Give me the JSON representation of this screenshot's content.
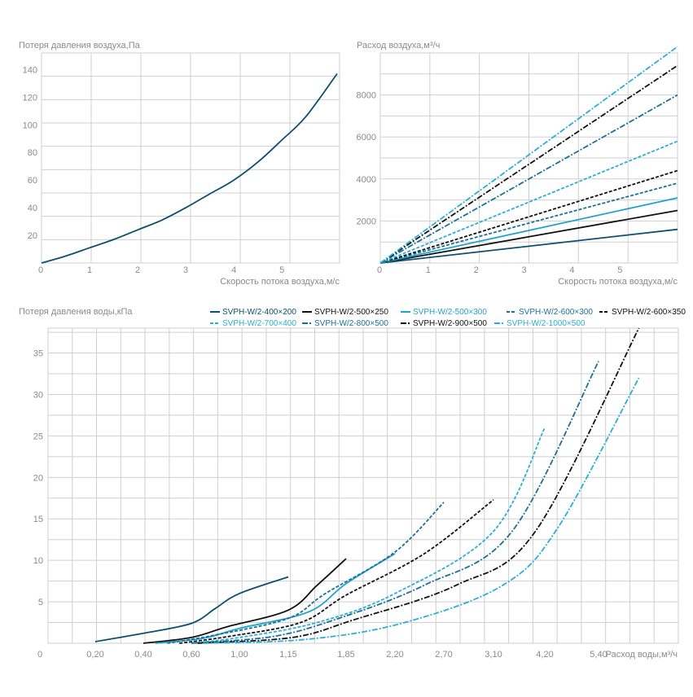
{
  "chart_data": [
    {
      "type": "line",
      "ylabel": "Потеря давления воздуха,Па",
      "xlabel": "Скорость потока воздуха,м/с",
      "origin_label": "0",
      "xlim": [
        0,
        6.2
      ],
      "ylim": [
        0,
        152
      ],
      "x_ticks": [
        1,
        2,
        3,
        4,
        5
      ],
      "x_tick_labels": [
        "1",
        "2",
        "3",
        "4",
        "5"
      ],
      "y_ticks": [
        20,
        40,
        60,
        80,
        100,
        120,
        140
      ],
      "y_tick_labels": [
        "20",
        "40",
        "60",
        "80",
        "100",
        "120",
        "140"
      ],
      "grid": true,
      "series": [
        {
          "color": "#0c4f6e",
          "dash": "solid",
          "x": [
            0,
            0.5,
            1,
            1.5,
            2,
            2.5,
            3,
            3.5,
            4,
            4.5,
            5,
            5.5,
            6.15
          ],
          "y": [
            0,
            5,
            11,
            17,
            24,
            31,
            40,
            50,
            60,
            73,
            89,
            106,
            137
          ]
        }
      ]
    },
    {
      "type": "line",
      "ylabel": "Расход воздуха,м³/ч",
      "xlabel": "Скорость потока воздуха,м/с",
      "origin_label": "0",
      "xlim": [
        0,
        6.2
      ],
      "ylim": [
        0,
        10000
      ],
      "x_ticks": [
        1,
        2,
        3,
        4,
        5
      ],
      "x_tick_labels": [
        "1",
        "2",
        "3",
        "4",
        "5"
      ],
      "y_ticks": [
        2000,
        4000,
        6000,
        8000
      ],
      "y_tick_labels": [
        "2000",
        "4000",
        "6000",
        "8000"
      ],
      "grid": true,
      "series": [
        {
          "color": "#0c4f6e",
          "dash": "solid",
          "x": [
            0,
            6.2
          ],
          "y": [
            0,
            1600
          ]
        },
        {
          "color": "#111111",
          "dash": "solid",
          "x": [
            0,
            6.2
          ],
          "y": [
            0,
            2500
          ]
        },
        {
          "color": "#1fa3cc",
          "dash": "solid",
          "x": [
            0,
            6.2
          ],
          "y": [
            0,
            3100
          ]
        },
        {
          "color": "#1a6f96",
          "dash": "dashed",
          "x": [
            0,
            6.2
          ],
          "y": [
            0,
            3800
          ]
        },
        {
          "color": "#111111",
          "dash": "dashed",
          "x": [
            0,
            6.2
          ],
          "y": [
            0,
            4400
          ]
        },
        {
          "color": "#2aaed8",
          "dash": "dashed",
          "x": [
            0,
            6.2
          ],
          "y": [
            0,
            5800
          ]
        },
        {
          "color": "#1a6f96",
          "dash": "dashdot",
          "x": [
            0,
            6.2
          ],
          "y": [
            0,
            8000
          ]
        },
        {
          "color": "#111111",
          "dash": "dashdot",
          "x": [
            0,
            6.2
          ],
          "y": [
            0,
            9400
          ]
        },
        {
          "color": "#2aaed8",
          "dash": "dashdot",
          "x": [
            0,
            6.2
          ],
          "y": [
            0,
            10300
          ]
        }
      ]
    },
    {
      "type": "line",
      "ylabel": "Потеря давления воды,кПа",
      "xlabel": "Расход воды,м³/ч",
      "origin_label": "0",
      "x_tick_labels": [
        "0,20",
        "0,40",
        "0,60",
        "1,00",
        "1,15",
        "1,85",
        "2,20",
        "2,70",
        "3,10",
        "4,20",
        "5,40"
      ],
      "y_ticks": [
        5,
        10,
        15,
        20,
        25,
        30,
        35
      ],
      "y_tick_labels": [
        "5",
        "10",
        "15",
        "20",
        "25",
        "30",
        "35"
      ],
      "ylim": [
        0,
        38
      ],
      "grid": true,
      "legend_position": "top-right",
      "series": [
        {
          "name": "SVPH-W/2-400×200",
          "color": "#0c4f6e",
          "dash": "solid",
          "x": [
            0.2,
            0.4,
            0.6,
            0.8,
            1.0,
            1.15
          ],
          "y": [
            0.2,
            1.2,
            2.4,
            4.2,
            6.0,
            8.0
          ]
        },
        {
          "name": "SVPH-W/2-500×250",
          "color": "#111111",
          "dash": "solid",
          "x": [
            0.4,
            0.6,
            0.9,
            1.15,
            1.5,
            1.85
          ],
          "y": [
            0.0,
            0.7,
            2.0,
            4.0,
            7.0,
            10.2
          ]
        },
        {
          "name": "SVPH-W/2-500×300",
          "color": "#1fa3cc",
          "dash": "solid",
          "x": [
            0.45,
            0.7,
            1.0,
            1.4,
            1.85,
            2.2
          ],
          "y": [
            0.0,
            0.6,
            1.8,
            3.8,
            7.2,
            10.8
          ]
        },
        {
          "name": "SVPH-W/2-600×300",
          "color": "#1a6f96",
          "dash": "dashed",
          "x": [
            0.5,
            0.8,
            1.15,
            1.6,
            2.2,
            2.7
          ],
          "y": [
            0.0,
            1.0,
            3.0,
            6.0,
            11.0,
            17.0
          ]
        },
        {
          "name": "SVPH-W/2-600×350",
          "color": "#111111",
          "dash": "dashed",
          "x": [
            0.55,
            0.9,
            1.3,
            1.85,
            2.5,
            3.1
          ],
          "y": [
            0.0,
            0.8,
            2.5,
            5.8,
            10.8,
            17.3
          ]
        },
        {
          "name": "SVPH-W/2-700×400",
          "color": "#2aaed8",
          "dash": "dashed",
          "x": [
            0.6,
            1.0,
            1.5,
            2.2,
            3.1,
            4.2
          ],
          "y": [
            0.0,
            0.7,
            2.5,
            6.0,
            13.5,
            26.0
          ]
        },
        {
          "name": "SVPH-W/2-800×500",
          "color": "#1a6f96",
          "dash": "dashdot",
          "x": [
            0.6,
            1.1,
            1.7,
            2.5,
            3.5,
            5.4
          ],
          "y": [
            0.0,
            0.8,
            2.8,
            7.0,
            13.5,
            34.0
          ]
        },
        {
          "name": "SVPH-W/2-900×500",
          "color": "#111111",
          "dash": "dashdot",
          "x": [
            0.65,
            1.2,
            1.9,
            2.8,
            4.0,
            6.3
          ],
          "y": [
            0.0,
            0.7,
            2.8,
            7.0,
            13.5,
            38.0
          ]
        },
        {
          "name": "SVPH-W/2-1000×500",
          "color": "#2aaed8",
          "dash": "dashdot",
          "x": [
            0.7,
            1.4,
            2.3,
            3.3,
            4.5,
            6.3
          ],
          "y": [
            0.0,
            0.5,
            2.5,
            7.0,
            14.0,
            32.0
          ]
        }
      ]
    }
  ]
}
